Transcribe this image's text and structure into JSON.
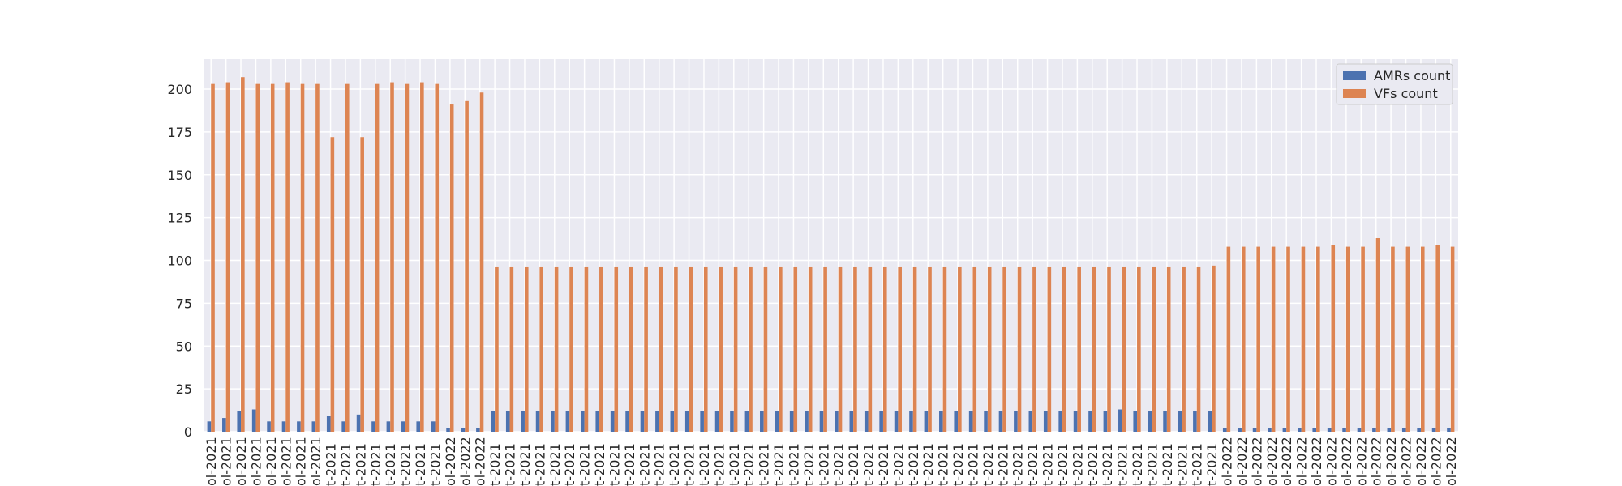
{
  "chart_data": {
    "type": "bar",
    "categories": [
      "ol-2021",
      "ol-2021",
      "ol-2021",
      "ol-2021",
      "ol-2021",
      "ol-2021",
      "ol-2021",
      "ol-2021",
      "t-2021",
      "t-2021",
      "t-2021",
      "t-2021",
      "t-2021",
      "t-2021",
      "t-2021",
      "t-2021",
      "ol-2022",
      "ol-2022",
      "ol-2022",
      "t-2021",
      "t-2021",
      "t-2021",
      "t-2021",
      "t-2021",
      "t-2021",
      "t-2021",
      "t-2021",
      "t-2021",
      "t-2021",
      "t-2021",
      "t-2021",
      "t-2021",
      "t-2021",
      "t-2021",
      "t-2021",
      "t-2021",
      "t-2021",
      "t-2021",
      "t-2021",
      "t-2021",
      "t-2021",
      "t-2021",
      "t-2021",
      "t-2021",
      "t-2021",
      "t-2021",
      "t-2021",
      "t-2021",
      "t-2021",
      "t-2021",
      "t-2021",
      "t-2021",
      "t-2021",
      "t-2021",
      "t-2021",
      "t-2021",
      "t-2021",
      "t-2021",
      "t-2021",
      "t-2021",
      "t-2021",
      "t-2021",
      "t-2021",
      "t-2021",
      "t-2021",
      "t-2021",
      "t-2021",
      "t-2021",
      "ol-2022",
      "ol-2022",
      "ol-2022",
      "ol-2022",
      "ol-2022",
      "ol-2022",
      "ol-2022",
      "ol-2022",
      "ol-2022",
      "ol-2022",
      "ol-2022",
      "ol-2022",
      "ol-2022",
      "ol-2022",
      "ol-2022",
      "ol-2022"
    ],
    "series": [
      {
        "name": "AMRs count",
        "color": "#4c72b0",
        "values": [
          6,
          8,
          12,
          13,
          6,
          6,
          6,
          6,
          9,
          6,
          10,
          6,
          6,
          6,
          6,
          6,
          2,
          2,
          2,
          12,
          12,
          12,
          12,
          12,
          12,
          12,
          12,
          12,
          12,
          12,
          12,
          12,
          12,
          12,
          12,
          12,
          12,
          12,
          12,
          12,
          12,
          12,
          12,
          12,
          12,
          12,
          12,
          12,
          12,
          12,
          12,
          12,
          12,
          12,
          12,
          12,
          12,
          12,
          12,
          12,
          12,
          13,
          12,
          12,
          12,
          12,
          12,
          12,
          2,
          2,
          2,
          2,
          2,
          2,
          2,
          2,
          2,
          2,
          2,
          2,
          2,
          2,
          2,
          2
        ]
      },
      {
        "name": "VFs count",
        "color": "#dd8452",
        "values": [
          203,
          204,
          207,
          203,
          203,
          204,
          203,
          203,
          172,
          203,
          172,
          203,
          204,
          203,
          204,
          203,
          191,
          193,
          198,
          96,
          96,
          96,
          96,
          96,
          96,
          96,
          96,
          96,
          96,
          96,
          96,
          96,
          96,
          96,
          96,
          96,
          96,
          96,
          96,
          96,
          96,
          96,
          96,
          96,
          96,
          96,
          96,
          96,
          96,
          96,
          96,
          96,
          96,
          96,
          96,
          96,
          96,
          96,
          96,
          96,
          96,
          96,
          96,
          96,
          96,
          96,
          96,
          97,
          108,
          108,
          108,
          108,
          108,
          108,
          108,
          109,
          108,
          108,
          113,
          108,
          108,
          108,
          109,
          108
        ]
      }
    ],
    "ylim": [
      0,
      217.5
    ],
    "yticks": [
      0,
      25,
      50,
      75,
      100,
      125,
      150,
      175,
      200
    ],
    "grid": true,
    "legend": "upper right"
  }
}
